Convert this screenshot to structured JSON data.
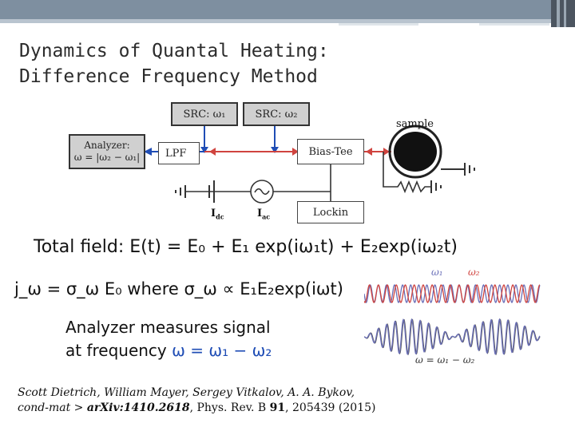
{
  "title": {
    "line1": "Dynamics of Quantal Heating:",
    "line2": "Difference Frequency Method"
  },
  "diagram": {
    "src1": "SRC: ω₁",
    "src2": "SRC: ω₂",
    "analyzer_line1": "Analyzer:",
    "analyzer_line2": "ω = |ω₂ − ω₁|",
    "lpf": "LPF",
    "bias_tee": "Bias-Tee",
    "lockin": "Lockin",
    "sample": "sample",
    "idc": "I",
    "idc_sub": "dc",
    "iac": "I",
    "iac_sub": "ac"
  },
  "equations": {
    "total_field": "Total field: E(t) = E₀ + E₁ exp(iω₁t) + E₂exp(iω₂t)",
    "current": "j_ω = σ_ω E₀  where σ_ω ∝ E₁E₂exp(iωt)",
    "analyzer_text_1": "Analyzer measures signal",
    "analyzer_text_2": "at frequency ",
    "analyzer_freq": "ω = ω₁ − ω₂"
  },
  "waves": {
    "label_w1": "ω₁",
    "label_w2": "ω₂",
    "label_diff": "ω = ω₁ − ω₂",
    "color_w1": "#6a6fb8",
    "color_w2": "#d0443f"
  },
  "citation": {
    "authors": "Scott Dietrich, William Mayer, Sergey Vitkalov, A. A. Bykov,",
    "ref_prefix": "cond-mat > ",
    "arxiv": "arXiv:1410.2618",
    "journal": ", Phys. Rev. B ",
    "volume": "91",
    "pages": ", 205439 (2015)"
  }
}
